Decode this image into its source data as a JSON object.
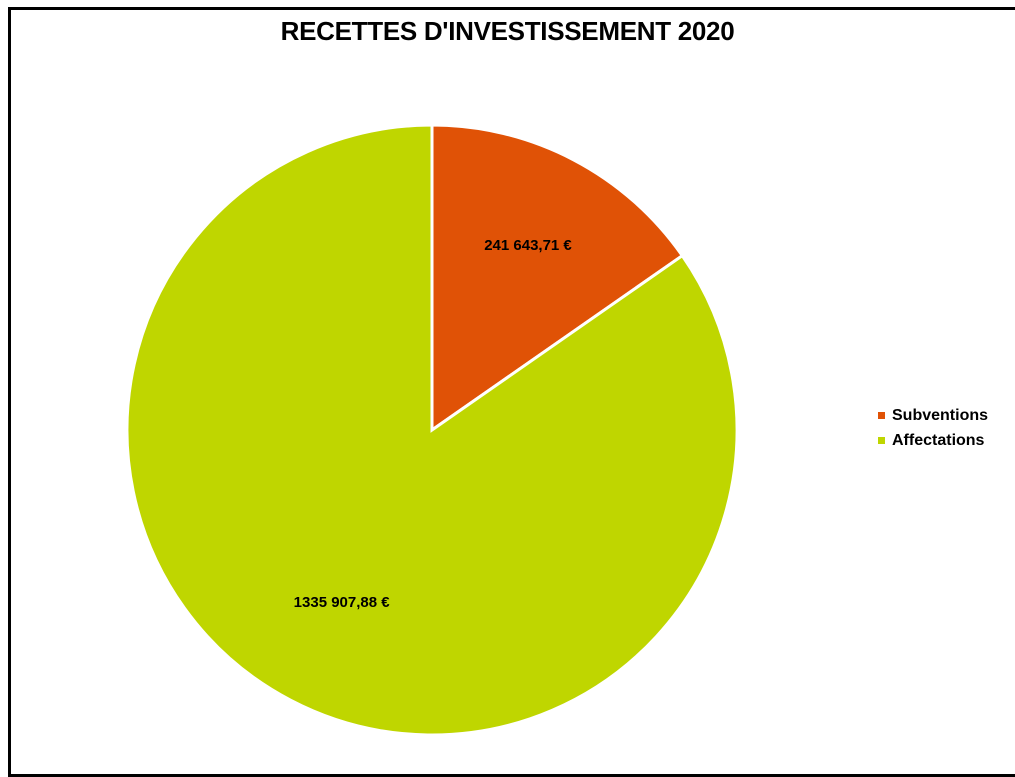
{
  "chart_data": {
    "type": "pie",
    "title": "RECETTES D'INVESTISSEMENT 2020",
    "slices": [
      {
        "name": "Subventions",
        "value": 241643.71,
        "label": "241 643,71 €",
        "color": "#E05206"
      },
      {
        "name": "Affectations",
        "value": 1335907.88,
        "label": "1335 907,88 €",
        "color": "#BFD600"
      }
    ],
    "legend_position": "right"
  }
}
